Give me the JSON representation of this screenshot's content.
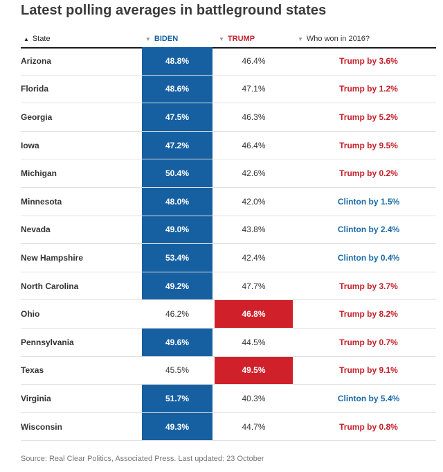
{
  "title": "Latest polling averages in battleground states",
  "header": {
    "state": "State",
    "biden": "BIDEN",
    "trump": "TRUMP",
    "won": "Who won in 2016?"
  },
  "source": "Source: Real Clear Politics, Associated Press. Last updated: 23 October",
  "colors": {
    "biden": "#1660a2",
    "trump": "#d0202a"
  },
  "chart_data": {
    "type": "table",
    "columns": [
      "State",
      "BIDEN",
      "TRUMP",
      "Who won in 2016?"
    ],
    "rows": [
      {
        "state": "Arizona",
        "biden": "48.8%",
        "trump": "46.4%",
        "won": "Trump by 3.6%",
        "leader": "biden",
        "won_party": "trump"
      },
      {
        "state": "Florida",
        "biden": "48.6%",
        "trump": "47.1%",
        "won": "Trump by 1.2%",
        "leader": "biden",
        "won_party": "trump"
      },
      {
        "state": "Georgia",
        "biden": "47.5%",
        "trump": "46.3%",
        "won": "Trump by 5.2%",
        "leader": "biden",
        "won_party": "trump"
      },
      {
        "state": "Iowa",
        "biden": "47.2%",
        "trump": "46.4%",
        "won": "Trump by 9.5%",
        "leader": "biden",
        "won_party": "trump"
      },
      {
        "state": "Michigan",
        "biden": "50.4%",
        "trump": "42.6%",
        "won": "Trump by 0.2%",
        "leader": "biden",
        "won_party": "trump"
      },
      {
        "state": "Minnesota",
        "biden": "48.0%",
        "trump": "42.0%",
        "won": "Clinton by 1.5%",
        "leader": "biden",
        "won_party": "clinton"
      },
      {
        "state": "Nevada",
        "biden": "49.0%",
        "trump": "43.8%",
        "won": "Clinton by 2.4%",
        "leader": "biden",
        "won_party": "clinton"
      },
      {
        "state": "New Hampshire",
        "biden": "53.4%",
        "trump": "42.4%",
        "won": "Clinton by 0.4%",
        "leader": "biden",
        "won_party": "clinton"
      },
      {
        "state": "North Carolina",
        "biden": "49.2%",
        "trump": "47.7%",
        "won": "Trump by 3.7%",
        "leader": "biden",
        "won_party": "trump"
      },
      {
        "state": "Ohio",
        "biden": "46.2%",
        "trump": "46.8%",
        "won": "Trump by 8.2%",
        "leader": "trump",
        "won_party": "trump"
      },
      {
        "state": "Pennsylvania",
        "biden": "49.6%",
        "trump": "44.5%",
        "won": "Trump by 0.7%",
        "leader": "biden",
        "won_party": "trump"
      },
      {
        "state": "Texas",
        "biden": "45.5%",
        "trump": "49.5%",
        "won": "Trump by 9.1%",
        "leader": "trump",
        "won_party": "trump"
      },
      {
        "state": "Virginia",
        "biden": "51.7%",
        "trump": "40.3%",
        "won": "Clinton by 5.4%",
        "leader": "biden",
        "won_party": "clinton"
      },
      {
        "state": "Wisconsin",
        "biden": "49.3%",
        "trump": "44.7%",
        "won": "Trump by 0.8%",
        "leader": "biden",
        "won_party": "trump"
      }
    ]
  }
}
